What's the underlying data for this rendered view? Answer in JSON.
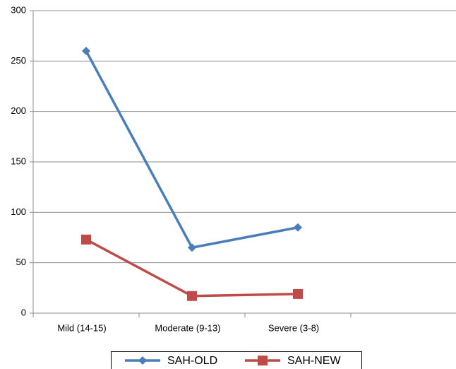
{
  "chart_data": {
    "type": "line",
    "categories": [
      "Mild (14-15)",
      "Moderate (9-13)",
      "Severe (3-8)",
      null
    ],
    "series": [
      {
        "name": "SAH-OLD",
        "color": "#4a7ebb",
        "marker": "diamond",
        "values": [
          260,
          65,
          85,
          null
        ]
      },
      {
        "name": "SAH-NEW",
        "color": "#be4b48",
        "marker": "square",
        "values": [
          73,
          17,
          19,
          null
        ]
      }
    ],
    "ylim": [
      0,
      300
    ],
    "yticks": [
      0,
      50,
      100,
      150,
      200,
      250,
      300
    ],
    "grid": true,
    "legend": "bottom"
  }
}
